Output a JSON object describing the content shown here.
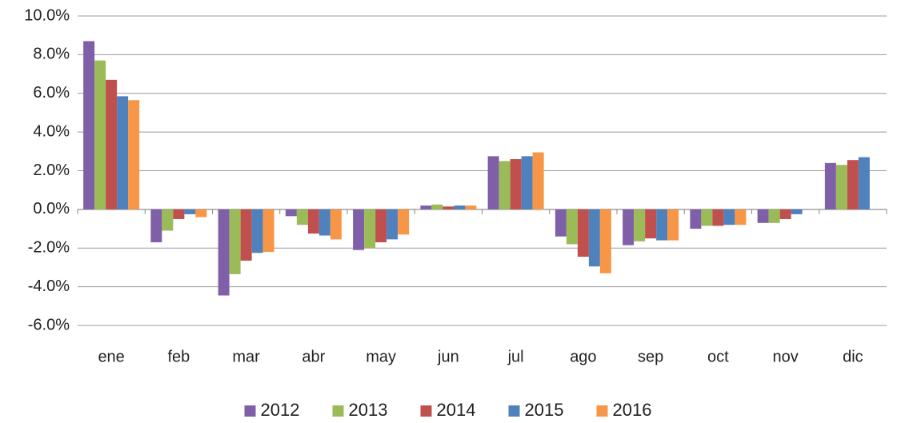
{
  "chart_data": {
    "type": "bar",
    "categories": [
      "ene",
      "feb",
      "mar",
      "abr",
      "may",
      "jun",
      "jul",
      "ago",
      "sep",
      "oct",
      "nov",
      "dic"
    ],
    "series": [
      {
        "name": "2012",
        "color": "#7f60a8",
        "values": [
          8.7,
          -1.7,
          -4.45,
          -0.35,
          -2.1,
          0.2,
          2.75,
          -1.4,
          -1.85,
          -1.0,
          -0.7,
          2.4
        ]
      },
      {
        "name": "2013",
        "color": "#9bbb59",
        "values": [
          7.7,
          -1.1,
          -3.35,
          -0.8,
          -2.0,
          0.25,
          2.5,
          -1.8,
          -1.65,
          -0.85,
          -0.7,
          2.3
        ]
      },
      {
        "name": "2014",
        "color": "#c0504d",
        "values": [
          6.7,
          -0.5,
          -2.65,
          -1.25,
          -1.7,
          0.15,
          2.6,
          -2.45,
          -1.5,
          -0.85,
          -0.5,
          2.55
        ]
      },
      {
        "name": "2015",
        "color": "#4f81bd",
        "values": [
          5.85,
          -0.25,
          -2.25,
          -1.35,
          -1.55,
          0.2,
          2.75,
          -2.95,
          -1.6,
          -0.8,
          -0.25,
          2.7
        ]
      },
      {
        "name": "2016",
        "color": "#f79646",
        "values": [
          5.65,
          -0.4,
          -2.2,
          -1.55,
          -1.3,
          0.2,
          2.95,
          -3.3,
          -1.6,
          -0.8,
          null,
          null
        ]
      }
    ],
    "ylim": [
      -6,
      10
    ],
    "yticks": [
      {
        "value": -6,
        "label": "-6.0%"
      },
      {
        "value": -4,
        "label": "-4.0%"
      },
      {
        "value": -2,
        "label": "-2.0%"
      },
      {
        "value": 0,
        "label": "0.0%"
      },
      {
        "value": 2,
        "label": "2.0%"
      },
      {
        "value": 4,
        "label": "4.0%"
      },
      {
        "value": 6,
        "label": "6.0%"
      },
      {
        "value": 8,
        "label": "8.0%"
      },
      {
        "value": 10,
        "label": "10.0%"
      }
    ],
    "grid": true,
    "legend": "bottom"
  }
}
